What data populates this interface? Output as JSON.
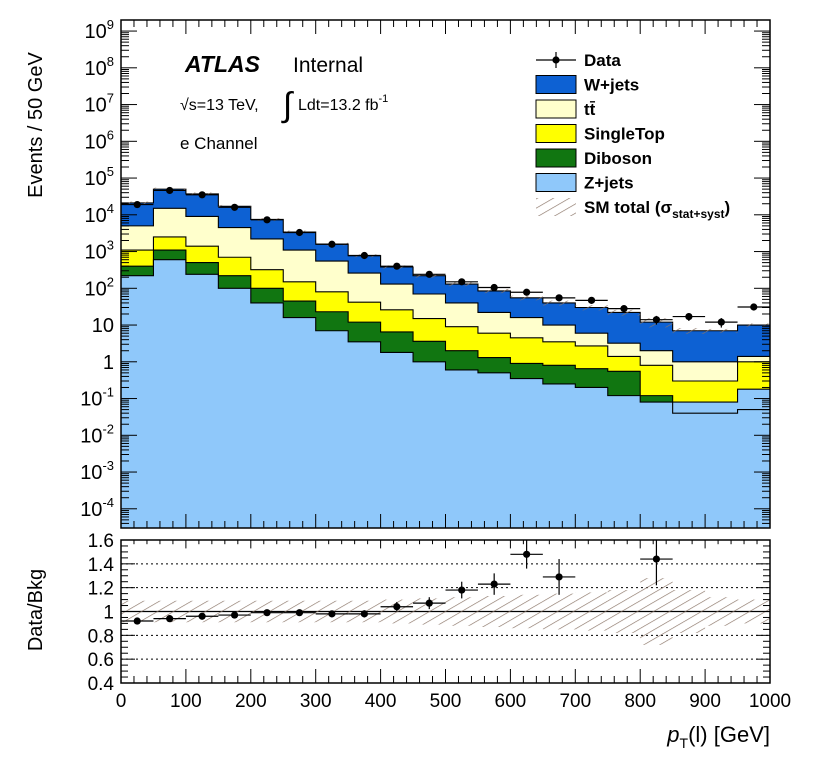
{
  "chart_data": {
    "type": "histogram",
    "experiment": "ATLAS",
    "status": "Internal",
    "energy_label": "√s=13 TeV,",
    "lumi_label": "Ldt=13.2 fb",
    "lumi_exponent": "-1",
    "channel": "e Channel",
    "xlabel_main": "p",
    "xlabel_sub": "T",
    "xlabel_rest": "(l) [GeV]",
    "ylabel": "Events / 50 GeV",
    "ratio_ylabel": "Data/Bkg",
    "xlim": [
      0,
      1000
    ],
    "ylim_log": [
      3e-05,
      2000000000
    ],
    "ratio_ylim": [
      0.4,
      1.6
    ],
    "bin_edges": [
      0,
      50,
      100,
      150,
      200,
      250,
      300,
      350,
      400,
      450,
      500,
      550,
      600,
      650,
      700,
      750,
      800,
      850,
      900,
      950,
      1000
    ],
    "x_ticks": [
      "0",
      "100",
      "200",
      "300",
      "400",
      "500",
      "600",
      "700",
      "800",
      "900",
      "1000"
    ],
    "x_tick_values": [
      0,
      100,
      200,
      300,
      400,
      500,
      600,
      700,
      800,
      900,
      1000
    ],
    "y_ticks": [
      {
        "v": 1000000000.0,
        "base": "10",
        "exp": "9"
      },
      {
        "v": 100000000.0,
        "base": "10",
        "exp": "8"
      },
      {
        "v": 10000000.0,
        "base": "10",
        "exp": "7"
      },
      {
        "v": 1000000.0,
        "base": "10",
        "exp": "6"
      },
      {
        "v": 100000.0,
        "base": "10",
        "exp": "5"
      },
      {
        "v": 10000.0,
        "base": "10",
        "exp": "4"
      },
      {
        "v": 1000.0,
        "base": "10",
        "exp": "3"
      },
      {
        "v": 100,
        "base": "10",
        "exp": "2"
      },
      {
        "v": 10,
        "base": "10",
        "exp": ""
      },
      {
        "v": 1,
        "base": "1",
        "exp": ""
      },
      {
        "v": 0.1,
        "base": "10",
        "exp": "-1"
      },
      {
        "v": 0.01,
        "base": "10",
        "exp": "-2"
      },
      {
        "v": 0.001,
        "base": "10",
        "exp": "-3"
      },
      {
        "v": 0.0001,
        "base": "10",
        "exp": "-4"
      }
    ],
    "ratio_ticks": [
      "0.4",
      "0.6",
      "0.8",
      "1",
      "1.2",
      "1.4",
      "1.6"
    ],
    "ratio_tick_values": [
      0.4,
      0.6,
      0.8,
      1.0,
      1.2,
      1.4,
      1.6
    ],
    "ratio_dotted_lines": [
      0.6,
      0.8,
      1.2,
      1.4
    ],
    "stack_order": [
      "Z+jets",
      "Diboson",
      "SingleTop",
      "tt̄",
      "W+jets"
    ],
    "series": [
      {
        "name": "Z+jets",
        "color": "#8fc8fa",
        "cumulative": [
          220,
          600,
          240,
          100,
          40,
          16,
          7,
          3.5,
          1.8,
          1.0,
          0.6,
          0.5,
          0.35,
          0.25,
          0.2,
          0.12,
          0.08,
          0.08,
          0.08,
          0.18
        ]
      },
      {
        "name": "Diboson",
        "color": "#117611",
        "cumulative": [
          400,
          1100,
          500,
          220,
          100,
          45,
          23,
          12,
          6.5,
          3.6,
          2.0,
          1.3,
          0.9,
          0.8,
          0.65,
          0.55,
          0.12,
          0.04,
          0.04,
          0.05
        ]
      },
      {
        "name": "SingleTop",
        "color": "#ffff00",
        "cumulative": [
          1100,
          2500,
          1400,
          700,
          320,
          150,
          80,
          42,
          26,
          15,
          9,
          6,
          4.5,
          3.5,
          2.7,
          1.4,
          0.8,
          0.3,
          0.3,
          1.0
        ]
      },
      {
        "name": "tt̄",
        "color": "#ffffcc",
        "cumulative": [
          5000,
          15000,
          9000,
          4500,
          2200,
          1100,
          550,
          260,
          130,
          70,
          40,
          22,
          16,
          10,
          6,
          3.2,
          2.0,
          1.0,
          1.0,
          1.4
        ]
      },
      {
        "name": "W+jets",
        "color": "#0d61d3",
        "cumulative": [
          21000,
          50000,
          37000,
          17000,
          7500,
          3400,
          1600,
          770,
          380,
          220,
          130,
          85,
          55,
          40,
          30,
          22,
          12,
          7,
          7,
          10
        ]
      }
    ],
    "data_points": [
      {
        "x": 25,
        "y": 19000
      },
      {
        "x": 75,
        "y": 46000
      },
      {
        "x": 125,
        "y": 35000
      },
      {
        "x": 175,
        "y": 16000
      },
      {
        "x": 225,
        "y": 7300
      },
      {
        "x": 275,
        "y": 3300
      },
      {
        "x": 325,
        "y": 1580
      },
      {
        "x": 375,
        "y": 780
      },
      {
        "x": 425,
        "y": 400
      },
      {
        "x": 475,
        "y": 240
      },
      {
        "x": 525,
        "y": 150
      },
      {
        "x": 575,
        "y": 105
      },
      {
        "x": 625,
        "y": 78
      },
      {
        "x": 675,
        "y": 55
      },
      {
        "x": 725,
        "y": 47
      },
      {
        "x": 775,
        "y": 28
      },
      {
        "x": 825,
        "y": 14
      },
      {
        "x": 875,
        "y": 17
      },
      {
        "x": 925,
        "y": 12
      },
      {
        "x": 975,
        "y": 31
      }
    ],
    "ratio_points": [
      {
        "x": 25,
        "y": 0.92,
        "err": 0.01
      },
      {
        "x": 75,
        "y": 0.94,
        "err": 0.01
      },
      {
        "x": 125,
        "y": 0.96,
        "err": 0.01
      },
      {
        "x": 175,
        "y": 0.97,
        "err": 0.01
      },
      {
        "x": 225,
        "y": 0.99,
        "err": 0.015
      },
      {
        "x": 275,
        "y": 0.99,
        "err": 0.02
      },
      {
        "x": 325,
        "y": 0.98,
        "err": 0.025
      },
      {
        "x": 375,
        "y": 0.98,
        "err": 0.03
      },
      {
        "x": 425,
        "y": 1.04,
        "err": 0.04
      },
      {
        "x": 475,
        "y": 1.07,
        "err": 0.05
      },
      {
        "x": 525,
        "y": 1.18,
        "err": 0.07
      },
      {
        "x": 575,
        "y": 1.23,
        "err": 0.09
      },
      {
        "x": 625,
        "y": 1.48,
        "err": 0.12
      },
      {
        "x": 675,
        "y": 1.29,
        "err": 0.15
      },
      {
        "x": 825,
        "y": 1.44,
        "err": 0.22
      }
    ],
    "syst_band": [
      0.09,
      0.09,
      0.09,
      0.09,
      0.09,
      0.09,
      0.09,
      0.09,
      0.1,
      0.11,
      0.12,
      0.13,
      0.14,
      0.15,
      0.16,
      0.18,
      0.28,
      0.18,
      0.12,
      0.1
    ],
    "legend": [
      {
        "label": "Data",
        "kind": "data"
      },
      {
        "label": "W+jets",
        "kind": "fill",
        "color": "#0d61d3"
      },
      {
        "label": "tt̄",
        "kind": "fill",
        "color": "#ffffcc"
      },
      {
        "label": "SingleTop",
        "kind": "fill",
        "color": "#ffff00"
      },
      {
        "label": "Diboson",
        "kind": "fill",
        "color": "#117611"
      },
      {
        "label": "Z+jets",
        "kind": "fill",
        "color": "#8fc8fa"
      },
      {
        "label": "SM total (σ",
        "sub": "stat+syst",
        "tail": ")",
        "kind": "hatch"
      }
    ],
    "legend_position": "top-right",
    "colors": {
      "hatch": "#8a7466",
      "axis": "#000000"
    }
  }
}
